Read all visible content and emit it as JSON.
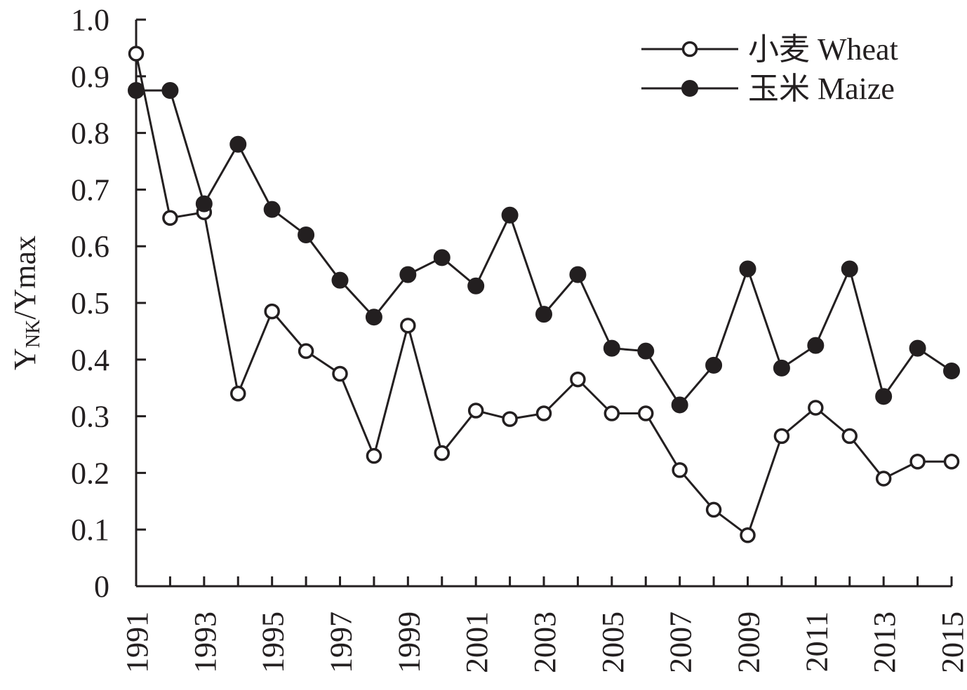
{
  "chart_data": {
    "type": "line",
    "ylabel": {
      "main": "Y",
      "sub": "NK",
      "rest": "/Ymax"
    },
    "xlabel": "",
    "ylim": [
      0,
      1.0
    ],
    "y_ticks": [
      "0",
      "0.1",
      "0.2",
      "0.3",
      "0.4",
      "0.5",
      "0.6",
      "0.7",
      "0.8",
      "0.9",
      "1.0"
    ],
    "x_ticks": [
      "1991",
      "1993",
      "1995",
      "1997",
      "1999",
      "2001",
      "2003",
      "2005",
      "2007",
      "2009",
      "2011",
      "2013",
      "2015"
    ],
    "x": [
      1991,
      1992,
      1993,
      1994,
      1995,
      1996,
      1997,
      1998,
      1999,
      2000,
      2001,
      2002,
      2003,
      2004,
      2005,
      2006,
      2007,
      2008,
      2009,
      2010,
      2011,
      2012,
      2013,
      2014,
      2015
    ],
    "series": [
      {
        "name": "小麦 Wheat",
        "marker": "open-circle",
        "color": "#231f20",
        "values": [
          0.94,
          0.65,
          0.66,
          0.34,
          0.485,
          0.415,
          0.375,
          0.23,
          0.46,
          0.235,
          0.31,
          0.295,
          0.305,
          0.365,
          0.305,
          0.305,
          0.205,
          0.135,
          0.09,
          0.265,
          0.315,
          0.265,
          0.19,
          0.22,
          0.22
        ]
      },
      {
        "name": "玉米 Maize",
        "marker": "filled-circle",
        "color": "#231f20",
        "values": [
          0.875,
          0.875,
          0.675,
          0.78,
          0.665,
          0.62,
          0.54,
          0.475,
          0.55,
          0.58,
          0.53,
          0.655,
          0.48,
          0.55,
          0.42,
          0.415,
          0.32,
          0.39,
          0.56,
          0.385,
          0.425,
          0.56,
          0.335,
          0.42,
          0.38
        ]
      }
    ],
    "legend_position": "top-right",
    "grid": false
  }
}
